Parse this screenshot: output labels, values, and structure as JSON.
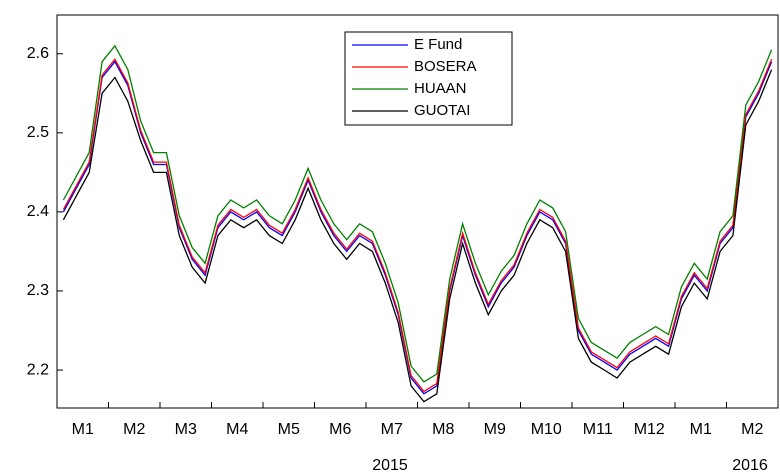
{
  "chart_data": {
    "type": "line",
    "categories": [
      null,
      "M1",
      null,
      null,
      null,
      "M2",
      null,
      null,
      null,
      "M3",
      null,
      null,
      null,
      "M4",
      null,
      null,
      null,
      "M5",
      null,
      null,
      null,
      "M6",
      null,
      null,
      null,
      "M7",
      null,
      null,
      null,
      "M8",
      null,
      null,
      null,
      "M9",
      null,
      null,
      null,
      "M10",
      null,
      null,
      null,
      "M11",
      null,
      null,
      null,
      "M12",
      null,
      null,
      null,
      "M1",
      null,
      null,
      null,
      "M2",
      null,
      null
    ],
    "x_group_labels": [
      "2015",
      "2016"
    ],
    "series": [
      {
        "name": "E Fund",
        "color": "#0000ff",
        "values": [
          2.4,
          2.43,
          2.46,
          2.57,
          2.59,
          2.56,
          2.5,
          2.46,
          2.46,
          2.38,
          2.34,
          2.32,
          2.38,
          2.4,
          2.39,
          2.4,
          2.38,
          2.37,
          2.4,
          2.44,
          2.4,
          2.37,
          2.35,
          2.37,
          2.36,
          2.32,
          2.27,
          2.19,
          2.17,
          2.18,
          2.3,
          2.37,
          2.32,
          2.28,
          2.31,
          2.33,
          2.37,
          2.4,
          2.39,
          2.36,
          2.25,
          2.22,
          2.21,
          2.2,
          2.22,
          2.23,
          2.24,
          2.23,
          2.29,
          2.32,
          2.3,
          2.36,
          2.38,
          2.52,
          2.55,
          2.59
        ]
      },
      {
        "name": "BOSERA",
        "color": "#ff0000",
        "values": [
          2.403,
          2.433,
          2.463,
          2.573,
          2.593,
          2.563,
          2.503,
          2.463,
          2.463,
          2.383,
          2.343,
          2.323,
          2.383,
          2.403,
          2.393,
          2.403,
          2.383,
          2.373,
          2.403,
          2.443,
          2.403,
          2.373,
          2.353,
          2.373,
          2.363,
          2.323,
          2.273,
          2.193,
          2.173,
          2.183,
          2.303,
          2.373,
          2.323,
          2.283,
          2.313,
          2.333,
          2.373,
          2.403,
          2.393,
          2.363,
          2.253,
          2.223,
          2.213,
          2.203,
          2.223,
          2.233,
          2.243,
          2.233,
          2.293,
          2.323,
          2.303,
          2.363,
          2.383,
          2.523,
          2.553,
          2.593
        ]
      },
      {
        "name": "HUAAN",
        "color": "#008000",
        "values": [
          2.415,
          2.445,
          2.475,
          2.59,
          2.61,
          2.58,
          2.515,
          2.475,
          2.475,
          2.395,
          2.355,
          2.335,
          2.395,
          2.415,
          2.405,
          2.415,
          2.395,
          2.385,
          2.415,
          2.455,
          2.415,
          2.385,
          2.365,
          2.385,
          2.375,
          2.335,
          2.285,
          2.205,
          2.185,
          2.195,
          2.315,
          2.385,
          2.335,
          2.295,
          2.325,
          2.345,
          2.385,
          2.415,
          2.405,
          2.375,
          2.265,
          2.235,
          2.225,
          2.215,
          2.235,
          2.245,
          2.255,
          2.245,
          2.305,
          2.335,
          2.315,
          2.375,
          2.395,
          2.535,
          2.565,
          2.605
        ]
      },
      {
        "name": "GUOTAI",
        "color": "#000000",
        "values": [
          2.39,
          2.42,
          2.45,
          2.55,
          2.57,
          2.54,
          2.49,
          2.45,
          2.45,
          2.37,
          2.33,
          2.31,
          2.37,
          2.39,
          2.38,
          2.39,
          2.37,
          2.36,
          2.39,
          2.43,
          2.39,
          2.36,
          2.34,
          2.36,
          2.35,
          2.31,
          2.26,
          2.18,
          2.16,
          2.17,
          2.29,
          2.36,
          2.31,
          2.27,
          2.3,
          2.32,
          2.36,
          2.39,
          2.38,
          2.35,
          2.24,
          2.21,
          2.2,
          2.19,
          2.21,
          2.22,
          2.23,
          2.22,
          2.28,
          2.31,
          2.29,
          2.35,
          2.37,
          2.51,
          2.54,
          2.58
        ]
      }
    ],
    "ylim": [
      2.152,
      2.649
    ],
    "yticks": [
      2.2,
      2.3,
      2.4,
      2.5,
      2.6
    ]
  }
}
